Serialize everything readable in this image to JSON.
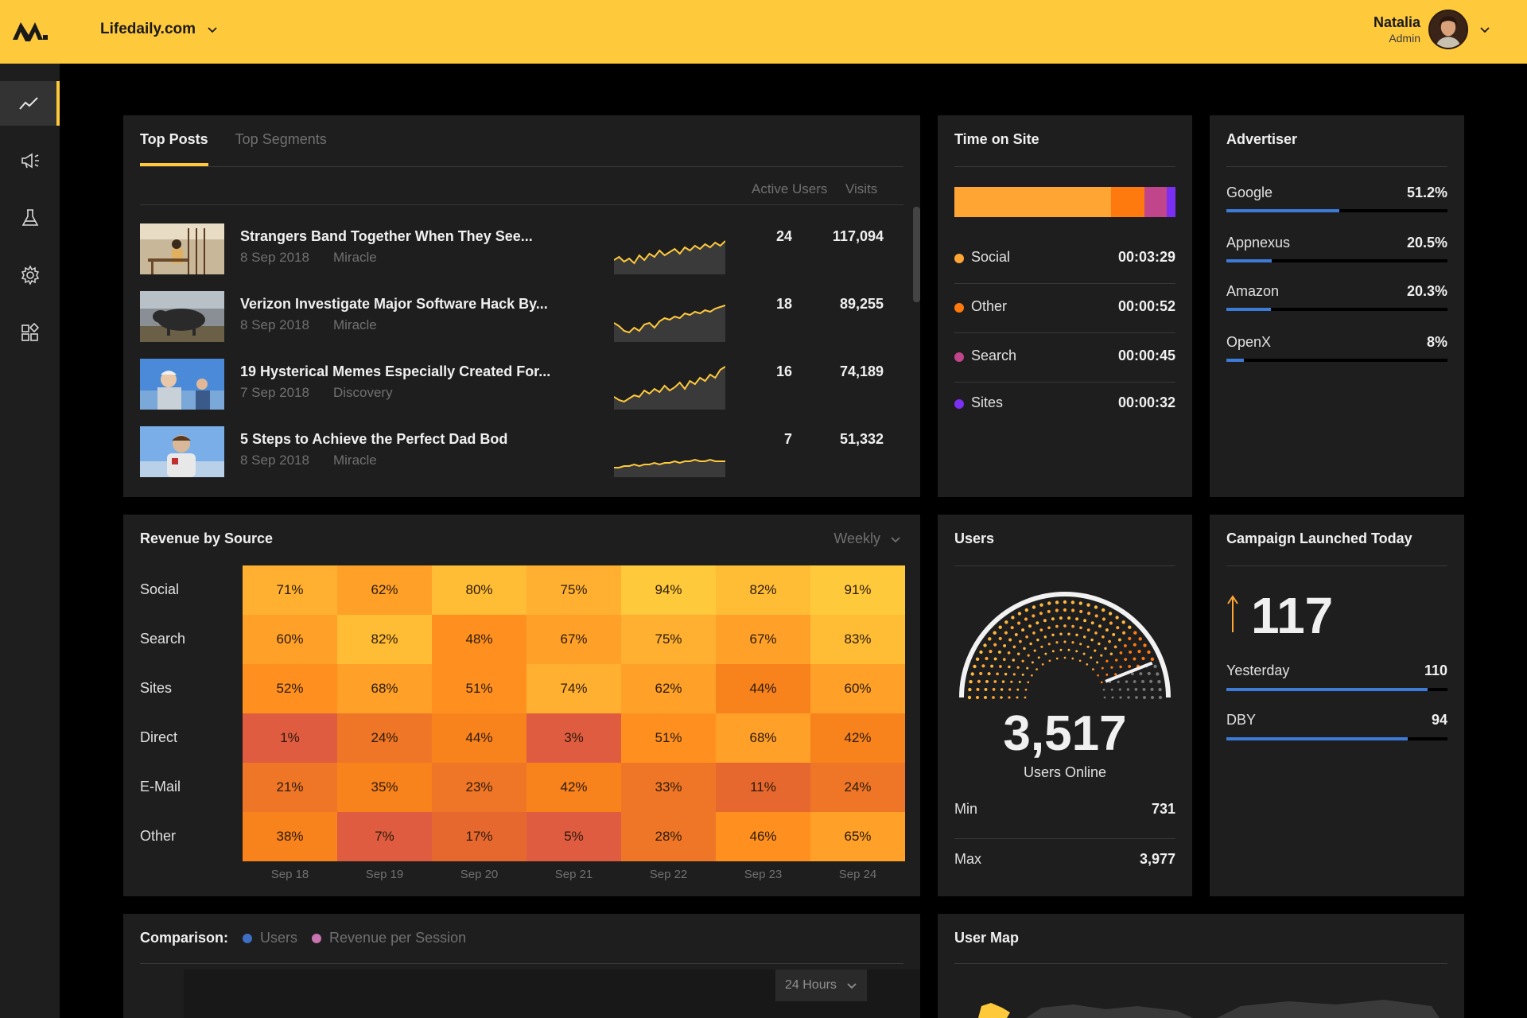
{
  "topbar": {
    "site_name": "Lifedaily.com",
    "user_name": "Natalia",
    "user_role": "Admin",
    "accent_color": "#ffc93c"
  },
  "sidebar": {
    "items": [
      {
        "icon": "trend-line-icon",
        "active": true
      },
      {
        "icon": "megaphone-icon",
        "active": false
      },
      {
        "icon": "flask-icon",
        "active": false
      },
      {
        "icon": "gear-icon",
        "active": false
      },
      {
        "icon": "widgets-icon",
        "active": false
      }
    ]
  },
  "top_posts": {
    "tabs": [
      "Top Posts",
      "Top Segments"
    ],
    "columns": {
      "users": "Active Users",
      "visits": "Visits"
    },
    "posts": [
      {
        "title": "Strangers Band Together When They See...",
        "date": "8 Sep 2018",
        "category": "Miracle",
        "users": "24",
        "visits": "117,094",
        "trend": [
          6,
          8,
          5,
          7,
          4,
          9,
          6,
          10,
          8,
          12,
          9,
          11,
          13,
          10,
          14,
          12,
          15,
          13,
          16,
          14,
          17,
          15,
          18
        ]
      },
      {
        "title": "Verizon Investigate Major Software Hack By...",
        "date": "8 Sep 2018",
        "category": "Miracle",
        "users": "18",
        "visits": "89,255",
        "trend": [
          9,
          7,
          4,
          3,
          6,
          4,
          8,
          9,
          6,
          10,
          12,
          11,
          13,
          12,
          15,
          14,
          16,
          15,
          17,
          16,
          18,
          19,
          20
        ]
      },
      {
        "title": "19 Hysterical Memes Especially Created For...",
        "date": "7 Sep 2018",
        "category": "Discovery",
        "users": "16",
        "visits": "74,189",
        "trend": [
          5,
          3,
          2,
          4,
          6,
          5,
          9,
          7,
          10,
          8,
          12,
          9,
          11,
          14,
          10,
          15,
          13,
          17,
          15,
          19,
          17,
          22,
          24
        ]
      },
      {
        "title": "5 Steps to Achieve the Perfect Dad Bod",
        "date": "8 Sep 2018",
        "category": "Miracle",
        "users": "7",
        "visits": "51,332",
        "trend": [
          3,
          3,
          4,
          4,
          5,
          4,
          5,
          5,
          6,
          5,
          6,
          6,
          7,
          6,
          7,
          7,
          8,
          7,
          7,
          8,
          7,
          7,
          7
        ]
      }
    ]
  },
  "time_on_site": {
    "title": "Time on Site",
    "segments": [
      {
        "label": "Social",
        "value": "00:03:29",
        "color": "#ffa534",
        "share": 0.71
      },
      {
        "label": "Other",
        "value": "00:00:52",
        "color": "#ff7a0e",
        "share": 0.15
      },
      {
        "label": "Search",
        "value": "00:00:45",
        "color": "#c0458a",
        "share": 0.1
      },
      {
        "label": "Sites",
        "value": "00:00:32",
        "color": "#7b2ff2",
        "share": 0.04
      }
    ]
  },
  "advertiser": {
    "title": "Advertiser",
    "items": [
      {
        "label": "Google",
        "value": "51.2%",
        "pct": 51.2
      },
      {
        "label": "Appnexus",
        "value": "20.5%",
        "pct": 20.5
      },
      {
        "label": "Amazon",
        "value": "20.3%",
        "pct": 20.3
      },
      {
        "label": "OpenX",
        "value": "8%",
        "pct": 8
      }
    ]
  },
  "revenue": {
    "title": "Revenue by Source",
    "period": "Weekly",
    "rows": [
      "Social",
      "Search",
      "Sites",
      "Direct",
      "E-Mail",
      "Other"
    ],
    "cols": [
      "Sep 18",
      "Sep 19",
      "Sep 20",
      "Sep 21",
      "Sep 22",
      "Sep 23",
      "Sep 24"
    ],
    "values": [
      [
        71,
        62,
        80,
        75,
        94,
        82,
        91
      ],
      [
        60,
        82,
        48,
        67,
        75,
        67,
        83
      ],
      [
        52,
        68,
        51,
        74,
        62,
        44,
        60
      ],
      [
        1,
        24,
        44,
        3,
        51,
        68,
        42
      ],
      [
        21,
        35,
        23,
        42,
        33,
        11,
        24
      ],
      [
        38,
        7,
        17,
        5,
        28,
        46,
        65
      ]
    ]
  },
  "users": {
    "title": "Users",
    "online": "3,517",
    "online_label": "Users Online",
    "gauge_fraction": 0.88,
    "min_label": "Min",
    "min_value": "731",
    "max_label": "Max",
    "max_value": "3,977"
  },
  "campaign": {
    "title": "Campaign Launched Today",
    "count": "117",
    "rows": [
      {
        "label": "Yesterday",
        "value": "110",
        "pct": 91
      },
      {
        "label": "DBY",
        "value": "94",
        "pct": 82
      }
    ]
  },
  "comparison": {
    "title": "Comparison:",
    "legend": [
      {
        "label": "Users",
        "color": "#3d6fc4"
      },
      {
        "label": "Revenue per Session",
        "color": "#c774b0"
      }
    ],
    "range": "24 Hours"
  },
  "user_map": {
    "title": "User Map"
  }
}
